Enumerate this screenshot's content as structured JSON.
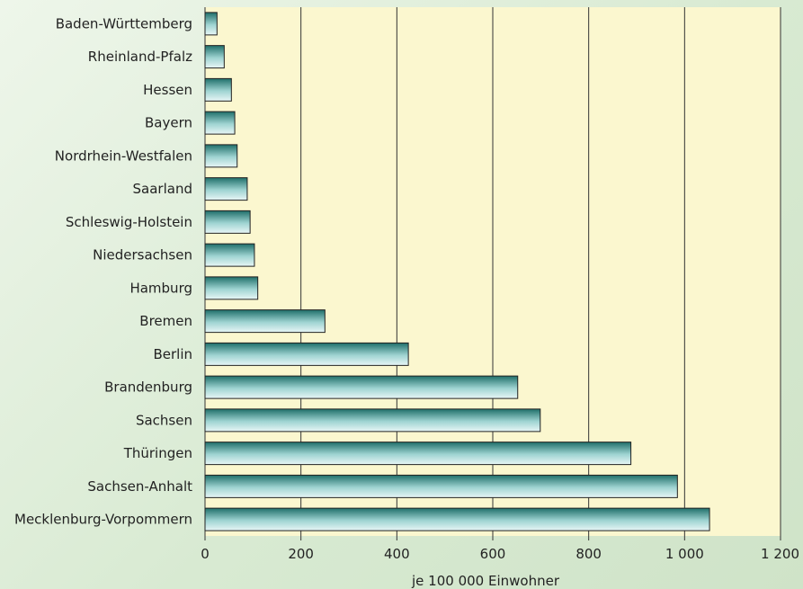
{
  "chart_data": {
    "type": "bar",
    "orientation": "horizontal",
    "categories": [
      "Baden-Württemberg",
      "Rheinland-Pfalz",
      "Hessen",
      "Bayern",
      "Nordrhein-Westfalen",
      "Saarland",
      "Schleswig-Holstein",
      "Niedersachsen",
      "Hamburg",
      "Bremen",
      "Berlin",
      "Brandenburg",
      "Sachsen",
      "Thüringen",
      "Sachsen-Anhalt",
      "Mecklenburg-Vorpommern"
    ],
    "values": [
      25,
      40,
      55,
      62,
      67,
      88,
      94,
      103,
      110,
      250,
      424,
      652,
      699,
      888,
      985,
      1052
    ],
    "title": "",
    "xlabel": "je 100 000 Einwohner",
    "ylabel": "",
    "xlim": [
      0,
      1200
    ],
    "xticks": [
      0,
      200,
      400,
      600,
      800,
      1000,
      1200
    ],
    "xtick_labels": [
      "0",
      "200",
      "400",
      "600",
      "800",
      "1 000",
      "1 200"
    ],
    "grid": "vertical",
    "plot_background": "#fbf7cf",
    "bar_color_top": "#1f6f6a",
    "bar_color_bottom": "#e8f6f6"
  }
}
